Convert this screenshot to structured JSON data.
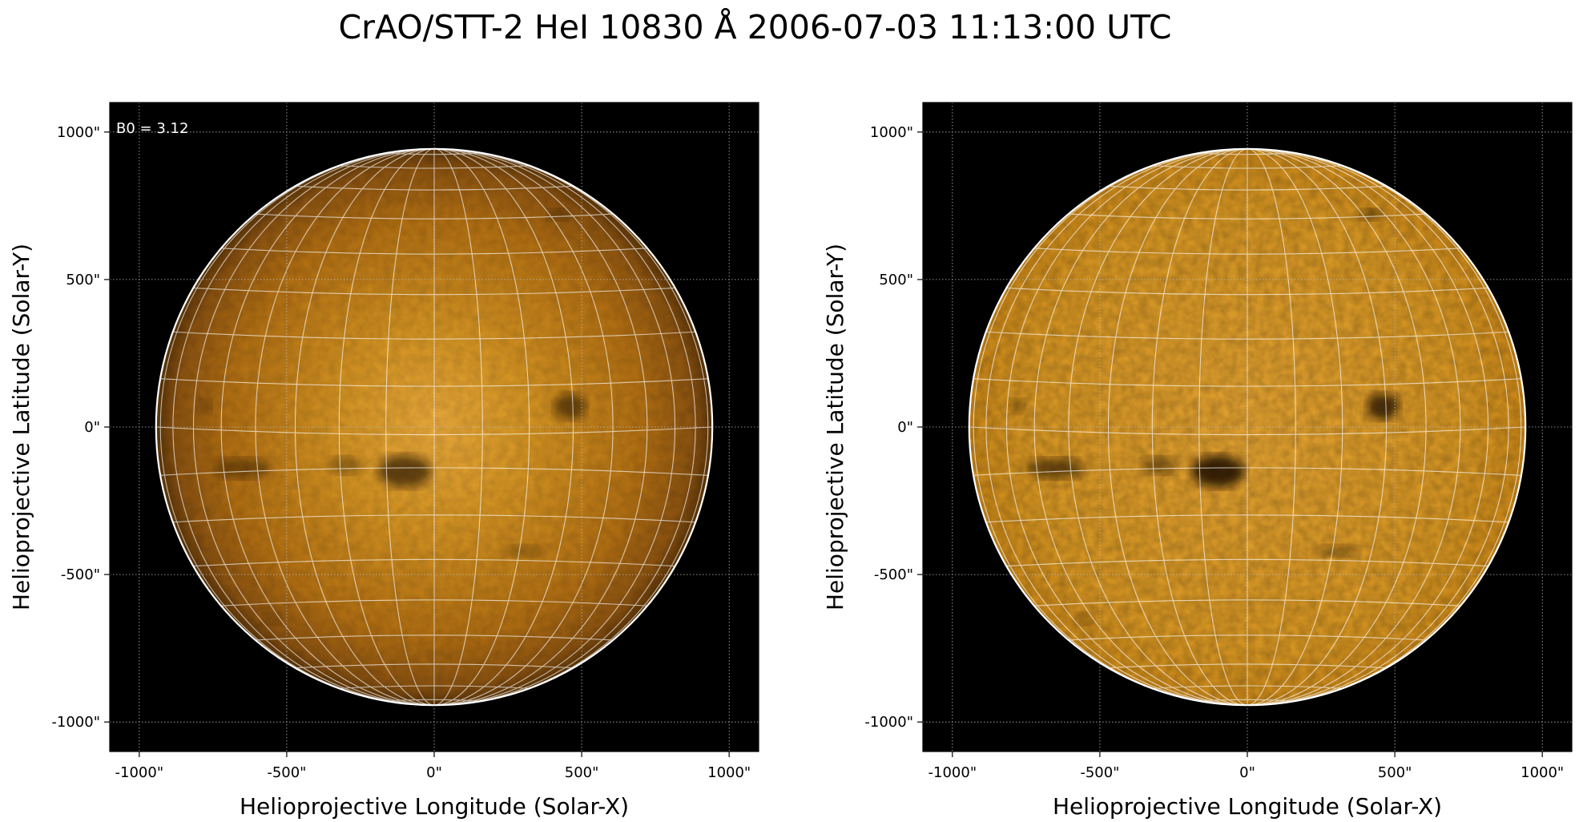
{
  "title": "CrAO/STT-2 HeI 10830 Å 2006-07-03 11:13:00 UTC",
  "colors": {
    "background": "#000000",
    "disk_edge": "#5a3408",
    "disk_mid": "#b06e12",
    "disk_center": "#d29222",
    "disk_bright": "#e8a83a",
    "grid_line": "#ffffff",
    "limb": "#ffffff"
  },
  "panels": [
    {
      "name": "original",
      "annotation": "B0 = 3.12",
      "xlabel": "Helioprojective Longitude (Solar-X)",
      "ylabel": "Helioprojective Latitude (Solar-Y)",
      "x_ticks": [
        "-1000\"",
        "-500\"",
        "0\"",
        "500\"",
        "1000\""
      ],
      "y_ticks": [
        "1000\"",
        "500\"",
        "0\"",
        "-500\"",
        "-1000\""
      ],
      "tick_values": [
        -1000,
        -500,
        0,
        500,
        1000
      ],
      "xlim": [
        -1100,
        1100
      ],
      "ylim": [
        -1100,
        1100
      ],
      "solar_radius_arcsec": 943,
      "limb_darkened": true
    },
    {
      "name": "processed",
      "annotation": "",
      "xlabel": "Helioprojective Longitude (Solar-X)",
      "ylabel": "Helioprojective Latitude (Solar-Y)",
      "x_ticks": [
        "-1000\"",
        "-500\"",
        "0\"",
        "500\"",
        "1000\""
      ],
      "y_ticks": [
        "1000\"",
        "500\"",
        "0\"",
        "-500\"",
        "-1000\""
      ],
      "tick_values": [
        -1000,
        -500,
        0,
        500,
        1000
      ],
      "xlim": [
        -1100,
        1100
      ],
      "ylim": [
        -1100,
        1100
      ],
      "solar_radius_arcsec": 943,
      "limb_darkened": false
    }
  ],
  "features": [
    {
      "name": "filament-west-north",
      "x": 460,
      "y": 70,
      "rx": 55,
      "ry": 45,
      "strength": 0.8
    },
    {
      "name": "active-region-center",
      "x": -100,
      "y": -150,
      "rx": 90,
      "ry": 55,
      "strength": 0.9
    },
    {
      "name": "filament-east",
      "x": -650,
      "y": -140,
      "rx": 100,
      "ry": 35,
      "strength": 0.6
    },
    {
      "name": "filament-mid-east",
      "x": -300,
      "y": -130,
      "rx": 60,
      "ry": 30,
      "strength": 0.5
    },
    {
      "name": "spot-northeast",
      "x": 420,
      "y": 720,
      "rx": 35,
      "ry": 20,
      "strength": 0.6
    },
    {
      "name": "spot-east-limb",
      "x": -780,
      "y": 70,
      "rx": 25,
      "ry": 25,
      "strength": 0.4
    },
    {
      "name": "filament-south",
      "x": 300,
      "y": -420,
      "rx": 70,
      "ry": 20,
      "strength": 0.4
    },
    {
      "name": "spot-south-east",
      "x": -550,
      "y": -650,
      "rx": 30,
      "ry": 20,
      "strength": 0.35
    }
  ]
}
